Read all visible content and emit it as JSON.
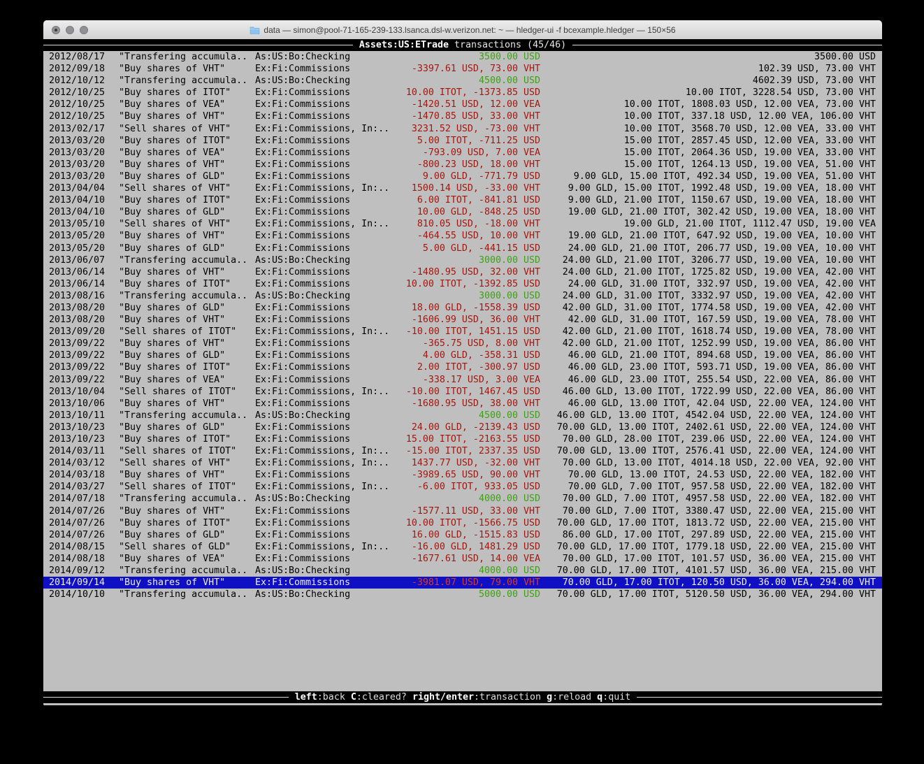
{
  "window": {
    "title": "data — simon@pool-71-165-239-133.lsanca.dsl-w.verizon.net: ~ — hledger-ui -f bcexample.hledger — 150×56",
    "traffic_lights": [
      "close",
      "minimize",
      "zoom"
    ]
  },
  "screen": {
    "account": "Assets:US:ETrade",
    "subtitle": " transactions (45/46)"
  },
  "help_bar": {
    "items": [
      {
        "key": "left",
        "desc": "back"
      },
      {
        "key": "C",
        "desc": "cleared?"
      },
      {
        "key": "right/enter",
        "desc": "transaction"
      },
      {
        "key": "g",
        "desc": "reload"
      },
      {
        "key": "q",
        "desc": "quit"
      }
    ]
  },
  "colors": {
    "terminal_bg": "#bfbfbf",
    "negative_amount": "#a01810",
    "positive_amount": "#3fa016",
    "selection_bg": "#0f10c4",
    "bar_bg": "#000000"
  },
  "transactions": {
    "rows": [
      {
        "date": "2012/08/17",
        "description": "\"Transfering accumula..",
        "account": "As:US:Bo:Checking",
        "change": "3500.00 USD",
        "balance": "3500.00 USD",
        "change_color": "green",
        "selected": false
      },
      {
        "date": "2012/09/18",
        "description": "\"Buy shares of VHT\"",
        "account": "Ex:Fi:Commissions",
        "change": "-3397.61 USD, 73.00 VHT",
        "balance": "102.39 USD, 73.00 VHT",
        "change_color": "red",
        "selected": false
      },
      {
        "date": "2012/10/12",
        "description": "\"Transfering accumula..",
        "account": "As:US:Bo:Checking",
        "change": "4500.00 USD",
        "balance": "4602.39 USD, 73.00 VHT",
        "change_color": "green",
        "selected": false
      },
      {
        "date": "2012/10/25",
        "description": "\"Buy shares of ITOT\"",
        "account": "Ex:Fi:Commissions",
        "change": "10.00 ITOT, -1373.85 USD",
        "balance": "10.00 ITOT, 3228.54 USD, 73.00 VHT",
        "change_color": "red",
        "selected": false
      },
      {
        "date": "2012/10/25",
        "description": "\"Buy shares of VEA\"",
        "account": "Ex:Fi:Commissions",
        "change": "-1420.51 USD, 12.00 VEA",
        "balance": "10.00 ITOT, 1808.03 USD, 12.00 VEA, 73.00 VHT",
        "change_color": "red",
        "selected": false
      },
      {
        "date": "2012/10/25",
        "description": "\"Buy shares of VHT\"",
        "account": "Ex:Fi:Commissions",
        "change": "-1470.85 USD, 33.00 VHT",
        "balance": "10.00 ITOT, 337.18 USD, 12.00 VEA, 106.00 VHT",
        "change_color": "red",
        "selected": false
      },
      {
        "date": "2013/02/17",
        "description": "\"Sell shares of VHT\"",
        "account": "Ex:Fi:Commissions, In:..",
        "change": "3231.52 USD, -73.00 VHT",
        "balance": "10.00 ITOT, 3568.70 USD, 12.00 VEA, 33.00 VHT",
        "change_color": "red",
        "selected": false
      },
      {
        "date": "2013/03/20",
        "description": "\"Buy shares of ITOT\"",
        "account": "Ex:Fi:Commissions",
        "change": "5.00 ITOT, -711.25 USD",
        "balance": "15.00 ITOT, 2857.45 USD, 12.00 VEA, 33.00 VHT",
        "change_color": "red",
        "selected": false
      },
      {
        "date": "2013/03/20",
        "description": "\"Buy shares of VEA\"",
        "account": "Ex:Fi:Commissions",
        "change": "-793.09 USD, 7.00 VEA",
        "balance": "15.00 ITOT, 2064.36 USD, 19.00 VEA, 33.00 VHT",
        "change_color": "red",
        "selected": false
      },
      {
        "date": "2013/03/20",
        "description": "\"Buy shares of VHT\"",
        "account": "Ex:Fi:Commissions",
        "change": "-800.23 USD, 18.00 VHT",
        "balance": "15.00 ITOT, 1264.13 USD, 19.00 VEA, 51.00 VHT",
        "change_color": "red",
        "selected": false
      },
      {
        "date": "2013/03/20",
        "description": "\"Buy shares of GLD\"",
        "account": "Ex:Fi:Commissions",
        "change": "9.00 GLD, -771.79 USD",
        "balance": "9.00 GLD, 15.00 ITOT, 492.34 USD, 19.00 VEA, 51.00 VHT",
        "change_color": "red",
        "selected": false
      },
      {
        "date": "2013/04/04",
        "description": "\"Sell shares of VHT\"",
        "account": "Ex:Fi:Commissions, In:..",
        "change": "1500.14 USD, -33.00 VHT",
        "balance": "9.00 GLD, 15.00 ITOT, 1992.48 USD, 19.00 VEA, 18.00 VHT",
        "change_color": "red",
        "selected": false
      },
      {
        "date": "2013/04/10",
        "description": "\"Buy shares of ITOT\"",
        "account": "Ex:Fi:Commissions",
        "change": "6.00 ITOT, -841.81 USD",
        "balance": "9.00 GLD, 21.00 ITOT, 1150.67 USD, 19.00 VEA, 18.00 VHT",
        "change_color": "red",
        "selected": false
      },
      {
        "date": "2013/04/10",
        "description": "\"Buy shares of GLD\"",
        "account": "Ex:Fi:Commissions",
        "change": "10.00 GLD, -848.25 USD",
        "balance": "19.00 GLD, 21.00 ITOT, 302.42 USD, 19.00 VEA, 18.00 VHT",
        "change_color": "red",
        "selected": false
      },
      {
        "date": "2013/05/10",
        "description": "\"Sell shares of VHT\"",
        "account": "Ex:Fi:Commissions, In:..",
        "change": "810.05 USD, -18.00 VHT",
        "balance": "19.00 GLD, 21.00 ITOT, 1112.47 USD, 19.00 VEA",
        "change_color": "red",
        "selected": false
      },
      {
        "date": "2013/05/20",
        "description": "\"Buy shares of VHT\"",
        "account": "Ex:Fi:Commissions",
        "change": "-464.55 USD, 10.00 VHT",
        "balance": "19.00 GLD, 21.00 ITOT, 647.92 USD, 19.00 VEA, 10.00 VHT",
        "change_color": "red",
        "selected": false
      },
      {
        "date": "2013/05/20",
        "description": "\"Buy shares of GLD\"",
        "account": "Ex:Fi:Commissions",
        "change": "5.00 GLD, -441.15 USD",
        "balance": "24.00 GLD, 21.00 ITOT, 206.77 USD, 19.00 VEA, 10.00 VHT",
        "change_color": "red",
        "selected": false
      },
      {
        "date": "2013/06/07",
        "description": "\"Transfering accumula..",
        "account": "As:US:Bo:Checking",
        "change": "3000.00 USD",
        "balance": "24.00 GLD, 21.00 ITOT, 3206.77 USD, 19.00 VEA, 10.00 VHT",
        "change_color": "green",
        "selected": false
      },
      {
        "date": "2013/06/14",
        "description": "\"Buy shares of VHT\"",
        "account": "Ex:Fi:Commissions",
        "change": "-1480.95 USD, 32.00 VHT",
        "balance": "24.00 GLD, 21.00 ITOT, 1725.82 USD, 19.00 VEA, 42.00 VHT",
        "change_color": "red",
        "selected": false
      },
      {
        "date": "2013/06/14",
        "description": "\"Buy shares of ITOT\"",
        "account": "Ex:Fi:Commissions",
        "change": "10.00 ITOT, -1392.85 USD",
        "balance": "24.00 GLD, 31.00 ITOT, 332.97 USD, 19.00 VEA, 42.00 VHT",
        "change_color": "red",
        "selected": false
      },
      {
        "date": "2013/08/16",
        "description": "\"Transfering accumula..",
        "account": "As:US:Bo:Checking",
        "change": "3000.00 USD",
        "balance": "24.00 GLD, 31.00 ITOT, 3332.97 USD, 19.00 VEA, 42.00 VHT",
        "change_color": "green",
        "selected": false
      },
      {
        "date": "2013/08/20",
        "description": "\"Buy shares of GLD\"",
        "account": "Ex:Fi:Commissions",
        "change": "18.00 GLD, -1558.39 USD",
        "balance": "42.00 GLD, 31.00 ITOT, 1774.58 USD, 19.00 VEA, 42.00 VHT",
        "change_color": "red",
        "selected": false
      },
      {
        "date": "2013/08/20",
        "description": "\"Buy shares of VHT\"",
        "account": "Ex:Fi:Commissions",
        "change": "-1606.99 USD, 36.00 VHT",
        "balance": "42.00 GLD, 31.00 ITOT, 167.59 USD, 19.00 VEA, 78.00 VHT",
        "change_color": "red",
        "selected": false
      },
      {
        "date": "2013/09/20",
        "description": "\"Sell shares of ITOT\"",
        "account": "Ex:Fi:Commissions, In:..",
        "change": "-10.00 ITOT, 1451.15 USD",
        "balance": "42.00 GLD, 21.00 ITOT, 1618.74 USD, 19.00 VEA, 78.00 VHT",
        "change_color": "red",
        "selected": false
      },
      {
        "date": "2013/09/22",
        "description": "\"Buy shares of VHT\"",
        "account": "Ex:Fi:Commissions",
        "change": "-365.75 USD, 8.00 VHT",
        "balance": "42.00 GLD, 21.00 ITOT, 1252.99 USD, 19.00 VEA, 86.00 VHT",
        "change_color": "red",
        "selected": false
      },
      {
        "date": "2013/09/22",
        "description": "\"Buy shares of GLD\"",
        "account": "Ex:Fi:Commissions",
        "change": "4.00 GLD, -358.31 USD",
        "balance": "46.00 GLD, 21.00 ITOT, 894.68 USD, 19.00 VEA, 86.00 VHT",
        "change_color": "red",
        "selected": false
      },
      {
        "date": "2013/09/22",
        "description": "\"Buy shares of ITOT\"",
        "account": "Ex:Fi:Commissions",
        "change": "2.00 ITOT, -300.97 USD",
        "balance": "46.00 GLD, 23.00 ITOT, 593.71 USD, 19.00 VEA, 86.00 VHT",
        "change_color": "red",
        "selected": false
      },
      {
        "date": "2013/09/22",
        "description": "\"Buy shares of VEA\"",
        "account": "Ex:Fi:Commissions",
        "change": "-338.17 USD, 3.00 VEA",
        "balance": "46.00 GLD, 23.00 ITOT, 255.54 USD, 22.00 VEA, 86.00 VHT",
        "change_color": "red",
        "selected": false
      },
      {
        "date": "2013/10/04",
        "description": "\"Sell shares of ITOT\"",
        "account": "Ex:Fi:Commissions, In:..",
        "change": "-10.00 ITOT, 1467.45 USD",
        "balance": "46.00 GLD, 13.00 ITOT, 1722.99 USD, 22.00 VEA, 86.00 VHT",
        "change_color": "red",
        "selected": false
      },
      {
        "date": "2013/10/06",
        "description": "\"Buy shares of VHT\"",
        "account": "Ex:Fi:Commissions",
        "change": "-1680.95 USD, 38.00 VHT",
        "balance": "46.00 GLD, 13.00 ITOT, 42.04 USD, 22.00 VEA, 124.00 VHT",
        "change_color": "red",
        "selected": false
      },
      {
        "date": "2013/10/11",
        "description": "\"Transfering accumula..",
        "account": "As:US:Bo:Checking",
        "change": "4500.00 USD",
        "balance": "46.00 GLD, 13.00 ITOT, 4542.04 USD, 22.00 VEA, 124.00 VHT",
        "change_color": "green",
        "selected": false
      },
      {
        "date": "2013/10/23",
        "description": "\"Buy shares of GLD\"",
        "account": "Ex:Fi:Commissions",
        "change": "24.00 GLD, -2139.43 USD",
        "balance": "70.00 GLD, 13.00 ITOT, 2402.61 USD, 22.00 VEA, 124.00 VHT",
        "change_color": "red",
        "selected": false
      },
      {
        "date": "2013/10/23",
        "description": "\"Buy shares of ITOT\"",
        "account": "Ex:Fi:Commissions",
        "change": "15.00 ITOT, -2163.55 USD",
        "balance": "70.00 GLD, 28.00 ITOT, 239.06 USD, 22.00 VEA, 124.00 VHT",
        "change_color": "red",
        "selected": false
      },
      {
        "date": "2014/03/11",
        "description": "\"Sell shares of ITOT\"",
        "account": "Ex:Fi:Commissions, In:..",
        "change": "-15.00 ITOT, 2337.35 USD",
        "balance": "70.00 GLD, 13.00 ITOT, 2576.41 USD, 22.00 VEA, 124.00 VHT",
        "change_color": "red",
        "selected": false
      },
      {
        "date": "2014/03/12",
        "description": "\"Sell shares of VHT\"",
        "account": "Ex:Fi:Commissions, In:..",
        "change": "1437.77 USD, -32.00 VHT",
        "balance": "70.00 GLD, 13.00 ITOT, 4014.18 USD, 22.00 VEA, 92.00 VHT",
        "change_color": "red",
        "selected": false
      },
      {
        "date": "2014/03/18",
        "description": "\"Buy shares of VHT\"",
        "account": "Ex:Fi:Commissions",
        "change": "-3989.65 USD, 90.00 VHT",
        "balance": "70.00 GLD, 13.00 ITOT, 24.53 USD, 22.00 VEA, 182.00 VHT",
        "change_color": "red",
        "selected": false
      },
      {
        "date": "2014/03/27",
        "description": "\"Sell shares of ITOT\"",
        "account": "Ex:Fi:Commissions, In:..",
        "change": "-6.00 ITOT, 933.05 USD",
        "balance": "70.00 GLD, 7.00 ITOT, 957.58 USD, 22.00 VEA, 182.00 VHT",
        "change_color": "red",
        "selected": false
      },
      {
        "date": "2014/07/18",
        "description": "\"Transfering accumula..",
        "account": "As:US:Bo:Checking",
        "change": "4000.00 USD",
        "balance": "70.00 GLD, 7.00 ITOT, 4957.58 USD, 22.00 VEA, 182.00 VHT",
        "change_color": "green",
        "selected": false
      },
      {
        "date": "2014/07/26",
        "description": "\"Buy shares of VHT\"",
        "account": "Ex:Fi:Commissions",
        "change": "-1577.11 USD, 33.00 VHT",
        "balance": "70.00 GLD, 7.00 ITOT, 3380.47 USD, 22.00 VEA, 215.00 VHT",
        "change_color": "red",
        "selected": false
      },
      {
        "date": "2014/07/26",
        "description": "\"Buy shares of ITOT\"",
        "account": "Ex:Fi:Commissions",
        "change": "10.00 ITOT, -1566.75 USD",
        "balance": "70.00 GLD, 17.00 ITOT, 1813.72 USD, 22.00 VEA, 215.00 VHT",
        "change_color": "red",
        "selected": false
      },
      {
        "date": "2014/07/26",
        "description": "\"Buy shares of GLD\"",
        "account": "Ex:Fi:Commissions",
        "change": "16.00 GLD, -1515.83 USD",
        "balance": "86.00 GLD, 17.00 ITOT, 297.89 USD, 22.00 VEA, 215.00 VHT",
        "change_color": "red",
        "selected": false
      },
      {
        "date": "2014/08/15",
        "description": "\"Sell shares of GLD\"",
        "account": "Ex:Fi:Commissions, In:..",
        "change": "-16.00 GLD, 1481.29 USD",
        "balance": "70.00 GLD, 17.00 ITOT, 1779.18 USD, 22.00 VEA, 215.00 VHT",
        "change_color": "red",
        "selected": false
      },
      {
        "date": "2014/08/18",
        "description": "\"Buy shares of VEA\"",
        "account": "Ex:Fi:Commissions",
        "change": "-1677.61 USD, 14.00 VEA",
        "balance": "70.00 GLD, 17.00 ITOT, 101.57 USD, 36.00 VEA, 215.00 VHT",
        "change_color": "red",
        "selected": false
      },
      {
        "date": "2014/09/12",
        "description": "\"Transfering accumula..",
        "account": "As:US:Bo:Checking",
        "change": "4000.00 USD",
        "balance": "70.00 GLD, 17.00 ITOT, 4101.57 USD, 36.00 VEA, 215.00 VHT",
        "change_color": "green",
        "selected": false
      },
      {
        "date": "2014/09/14",
        "description": "\"Buy shares of VHT\"",
        "account": "Ex:Fi:Commissions",
        "change": "-3981.07 USD, 79.00 VHT",
        "balance": "70.00 GLD, 17.00 ITOT, 120.50 USD, 36.00 VEA, 294.00 VHT",
        "change_color": "red",
        "selected": true
      },
      {
        "date": "2014/10/10",
        "description": "\"Transfering accumula..",
        "account": "As:US:Bo:Checking",
        "change": "5000.00 USD",
        "balance": "70.00 GLD, 17.00 ITOT, 5120.50 USD, 36.00 VEA, 294.00 VHT",
        "change_color": "green",
        "selected": false
      }
    ]
  }
}
